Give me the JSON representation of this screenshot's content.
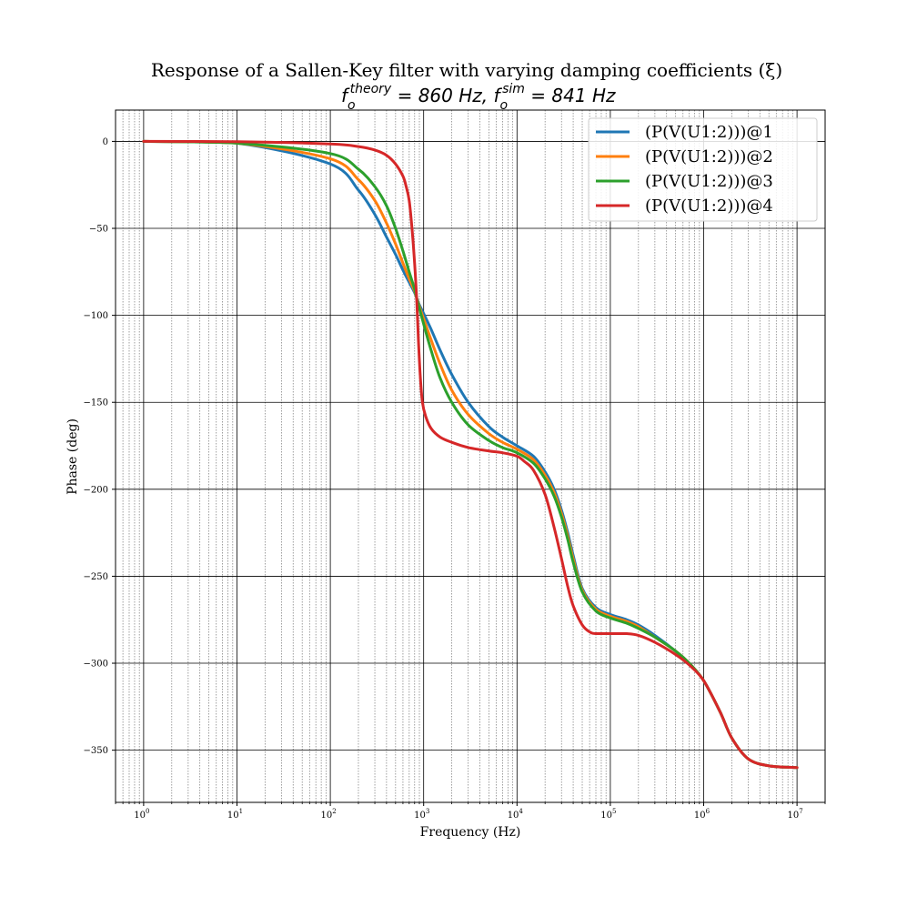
{
  "chart_data": {
    "type": "line",
    "title": "Response of a Sallen-Key filter with varying damping coefficients (ξ)",
    "subtitle": {
      "f_theory_base": "f",
      "f_theory_sub": "o",
      "f_theory_sup": "theory",
      "f_theory_value": " = 860 Hz, ",
      "f_sim_base": "f",
      "f_sim_sub": "o",
      "f_sim_sup": "sim",
      "f_sim_value": " = 841 Hz"
    },
    "xlabel": "Frequency (Hz)",
    "ylabel": "Phase (deg)",
    "xscale": "log",
    "xlim": [
      0.5,
      20000000
    ],
    "ylim": [
      -380,
      18
    ],
    "x_ticks": [
      {
        "base": "10",
        "exp": "0",
        "value": 1
      },
      {
        "base": "10",
        "exp": "1",
        "value": 10
      },
      {
        "base": "10",
        "exp": "2",
        "value": 100
      },
      {
        "base": "10",
        "exp": "3",
        "value": 1000
      },
      {
        "base": "10",
        "exp": "4",
        "value": 10000
      },
      {
        "base": "10",
        "exp": "5",
        "value": 100000
      },
      {
        "base": "10",
        "exp": "6",
        "value": 1000000
      },
      {
        "base": "10",
        "exp": "7",
        "value": 10000000
      }
    ],
    "y_ticks": [
      {
        "label": "0",
        "value": 0
      },
      {
        "label": "−50",
        "value": -50
      },
      {
        "label": "−100",
        "value": -100
      },
      {
        "label": "−150",
        "value": -150
      },
      {
        "label": "−200",
        "value": -200
      },
      {
        "label": "−250",
        "value": -250
      },
      {
        "label": "−300",
        "value": -300
      },
      {
        "label": "−350",
        "value": -350
      }
    ],
    "grid": true,
    "legend_position": "top-right",
    "series": [
      {
        "name": "(P(V(U1:2)))@1",
        "color": "#1f77b4",
        "x": [
          1,
          10,
          100,
          200,
          300,
          400,
          500,
          600,
          700,
          800,
          841,
          900,
          1000,
          1200,
          1500,
          2000,
          3000,
          5000,
          7000,
          10000,
          15000,
          20000,
          25000,
          30000,
          35000,
          40000,
          50000,
          70000,
          100000,
          150000,
          200000,
          300000,
          500000,
          700000,
          1000000,
          1500000,
          2000000,
          3000000,
          5000000,
          10000000
        ],
        "y": [
          0,
          -1,
          -13,
          -28,
          -42,
          -55,
          -65,
          -74,
          -81,
          -87,
          -90,
          -94,
          -99,
          -108,
          -120,
          -134,
          -150,
          -164,
          -170,
          -175,
          -181,
          -190,
          -200,
          -212,
          -225,
          -238,
          -257,
          -268,
          -272,
          -275,
          -278,
          -284,
          -293,
          -300,
          -310,
          -328,
          -343,
          -355,
          -359,
          -360
        ]
      },
      {
        "name": "(P(V(U1:2)))@2",
        "color": "#ff7f0e",
        "x": [
          1,
          10,
          100,
          200,
          300,
          400,
          500,
          600,
          700,
          800,
          841,
          900,
          1000,
          1200,
          1500,
          2000,
          3000,
          5000,
          7000,
          10000,
          15000,
          20000,
          25000,
          30000,
          35000,
          40000,
          50000,
          70000,
          100000,
          150000,
          200000,
          300000,
          500000,
          700000,
          1000000,
          1500000,
          2000000,
          3000000,
          5000000,
          10000000
        ],
        "y": [
          0,
          -1,
          -10,
          -22,
          -34,
          -47,
          -59,
          -70,
          -79,
          -86,
          -90,
          -95,
          -102,
          -114,
          -128,
          -143,
          -157,
          -168,
          -173,
          -177,
          -183,
          -192,
          -202,
          -214,
          -227,
          -240,
          -258,
          -269,
          -273,
          -276,
          -279,
          -285,
          -293,
          -300,
          -310,
          -328,
          -343,
          -355,
          -359,
          -360
        ]
      },
      {
        "name": "(P(V(U1:2)))@3",
        "color": "#2ca02c",
        "x": [
          1,
          10,
          100,
          200,
          300,
          400,
          500,
          600,
          700,
          800,
          841,
          900,
          1000,
          1200,
          1500,
          2000,
          3000,
          5000,
          7000,
          10000,
          15000,
          20000,
          25000,
          30000,
          35000,
          40000,
          50000,
          70000,
          100000,
          150000,
          200000,
          300000,
          500000,
          700000,
          1000000,
          1500000,
          2000000,
          3000000,
          5000000,
          10000000
        ],
        "y": [
          0,
          -1,
          -7,
          -16,
          -26,
          -37,
          -50,
          -63,
          -75,
          -85,
          -90,
          -96,
          -105,
          -120,
          -136,
          -150,
          -163,
          -172,
          -176,
          -179,
          -185,
          -194,
          -204,
          -216,
          -229,
          -242,
          -259,
          -270,
          -274,
          -277,
          -280,
          -285,
          -293,
          -300,
          -310,
          -328,
          -343,
          -355,
          -359,
          -360
        ]
      },
      {
        "name": "(P(V(U1:2)))@4",
        "color": "#d62728",
        "x": [
          1,
          10,
          100,
          200,
          300,
          400,
          500,
          600,
          650,
          700,
          750,
          800,
          841,
          880,
          920,
          970,
          1050,
          1200,
          1500,
          2000,
          3000,
          5000,
          7000,
          10000,
          12000,
          15000,
          20000,
          25000,
          30000,
          35000,
          40000,
          50000,
          60000,
          70000,
          100000,
          150000,
          200000,
          300000,
          500000,
          700000,
          1000000,
          1500000,
          2000000,
          3000000,
          5000000,
          10000000
        ],
        "y": [
          0,
          -0.2,
          -1.5,
          -3,
          -5,
          -8,
          -13,
          -20,
          -26,
          -34,
          -50,
          -70,
          -90,
          -115,
          -135,
          -150,
          -158,
          -165,
          -170,
          -173,
          -176,
          -178,
          -179,
          -181,
          -184,
          -189,
          -203,
          -222,
          -240,
          -256,
          -267,
          -278,
          -282,
          -283,
          -283,
          -283,
          -284,
          -288,
          -295,
          -301,
          -310,
          -328,
          -343,
          -355,
          -359,
          -360
        ]
      }
    ]
  }
}
